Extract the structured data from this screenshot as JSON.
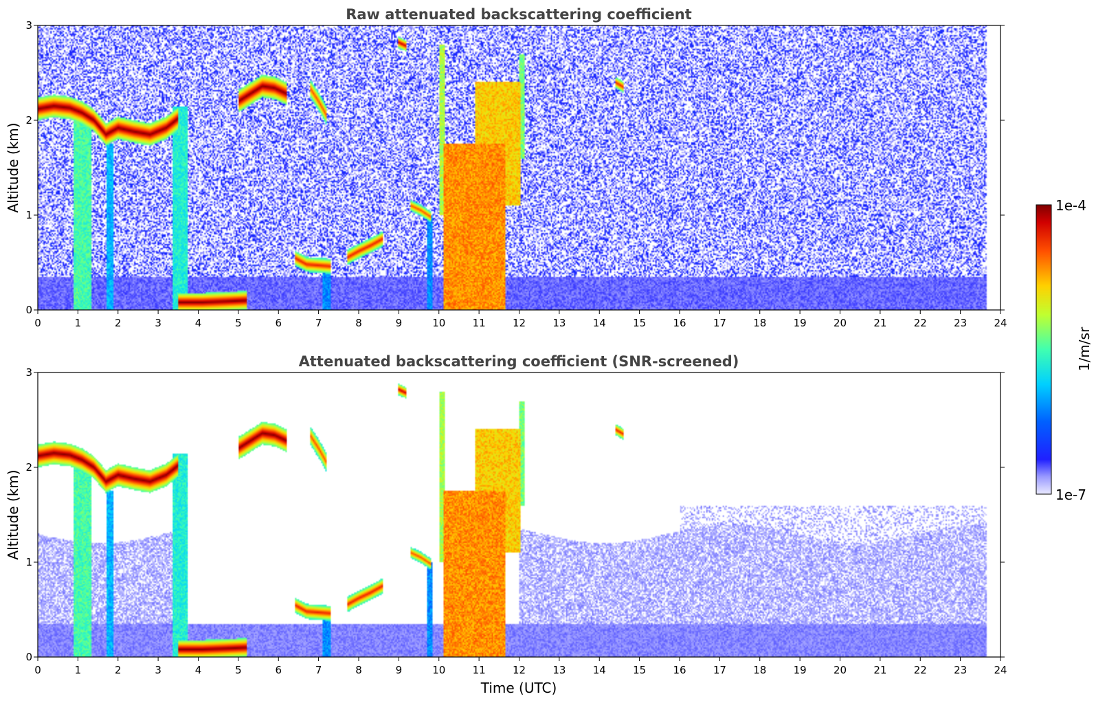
{
  "chart_data": [
    {
      "type": "heatmap",
      "title": "Raw attenuated backscattering coefficient",
      "xlabel": "",
      "ylabel": "Altitude (km)",
      "xlim": [
        0,
        24
      ],
      "ylim": [
        0,
        3
      ],
      "x_ticks": [
        "0",
        "1",
        "2",
        "3",
        "4",
        "5",
        "6",
        "7",
        "8",
        "9",
        "10",
        "11",
        "12",
        "13",
        "14",
        "15",
        "16",
        "17",
        "18",
        "19",
        "20",
        "21",
        "22",
        "23",
        "24"
      ],
      "y_ticks": [
        "0",
        "1",
        "2",
        "3"
      ],
      "data_end_time": 23.65,
      "colorscale": "jet",
      "background_signal": "noisy",
      "features": [
        {
          "kind": "layer",
          "x": [
            0,
            0.4,
            0.8,
            1.1,
            1.4,
            1.7,
            2.0,
            2.4,
            2.8,
            3.2,
            3.5
          ],
          "y": [
            2.12,
            2.15,
            2.13,
            2.08,
            2.0,
            1.85,
            1.92,
            1.88,
            1.85,
            1.92,
            2.02
          ],
          "thickness": 0.12,
          "intensity": 1.0
        },
        {
          "kind": "layer",
          "x": [
            5.0,
            5.3,
            5.6,
            5.9,
            6.2
          ],
          "y": [
            2.2,
            2.28,
            2.36,
            2.34,
            2.28
          ],
          "thickness": 0.12,
          "intensity": 1.0
        },
        {
          "kind": "layer",
          "x": [
            6.8,
            7.0,
            7.2
          ],
          "y": [
            2.33,
            2.2,
            2.05
          ],
          "thickness": 0.1,
          "intensity": 0.85
        },
        {
          "kind": "layer",
          "x": [
            3.5,
            4.1,
            4.7,
            5.2
          ],
          "y": [
            0.08,
            0.08,
            0.09,
            0.1
          ],
          "thickness": 0.1,
          "intensity": 1.0
        },
        {
          "kind": "layer",
          "x": [
            6.4,
            6.7,
            7.0,
            7.3
          ],
          "y": [
            0.55,
            0.48,
            0.47,
            0.46
          ],
          "thickness": 0.08,
          "intensity": 0.9
        },
        {
          "kind": "layer",
          "x": [
            7.7,
            8.0,
            8.3,
            8.6
          ],
          "y": [
            0.55,
            0.62,
            0.68,
            0.75
          ],
          "thickness": 0.08,
          "intensity": 0.9
        },
        {
          "kind": "layer",
          "x": [
            9.0,
            9.2
          ],
          "y": [
            2.82,
            2.78
          ],
          "thickness": 0.06,
          "intensity": 0.95
        },
        {
          "kind": "layer",
          "x": [
            14.4,
            14.6
          ],
          "y": [
            2.4,
            2.35
          ],
          "thickness": 0.06,
          "intensity": 0.9
        },
        {
          "kind": "layer",
          "x": [
            9.3,
            9.55,
            9.8
          ],
          "y": [
            1.1,
            1.05,
            0.98
          ],
          "thickness": 0.06,
          "intensity": 0.85
        },
        {
          "kind": "column",
          "x0": 0.9,
          "x1": 1.35,
          "y0": 0,
          "y1": 2.05,
          "intensity": 0.5
        },
        {
          "kind": "column",
          "x0": 1.7,
          "x1": 1.9,
          "y0": 0,
          "y1": 1.75,
          "intensity": 0.35
        },
        {
          "kind": "column",
          "x0": 3.35,
          "x1": 3.75,
          "y0": 0,
          "y1": 2.15,
          "intensity": 0.45
        },
        {
          "kind": "column",
          "x0": 7.1,
          "x1": 7.3,
          "y0": 0,
          "y1": 0.45,
          "intensity": 0.3
        },
        {
          "kind": "column",
          "x0": 9.7,
          "x1": 9.85,
          "y0": 0,
          "y1": 1.0,
          "intensity": 0.3
        },
        {
          "kind": "column",
          "x0": 10.1,
          "x1": 11.65,
          "y0": 0,
          "y1": 1.75,
          "intensity": 0.78
        },
        {
          "kind": "column",
          "x0": 10.9,
          "x1": 12.05,
          "y0": 1.1,
          "y1": 2.4,
          "intensity": 0.72
        },
        {
          "kind": "column",
          "x0": 10.0,
          "x1": 10.15,
          "y0": 1.0,
          "y1": 2.8,
          "intensity": 0.6
        },
        {
          "kind": "column",
          "x0": 12.0,
          "x1": 12.15,
          "y0": 1.6,
          "y1": 2.7,
          "intensity": 0.55
        }
      ]
    },
    {
      "type": "heatmap",
      "title": "Attenuated backscattering coefficient (SNR-screened)",
      "xlabel": "Time (UTC)",
      "ylabel": "Altitude (km)",
      "xlim": [
        0,
        24
      ],
      "ylim": [
        0,
        3
      ],
      "x_ticks": [
        "0",
        "1",
        "2",
        "3",
        "4",
        "5",
        "6",
        "7",
        "8",
        "9",
        "10",
        "11",
        "12",
        "13",
        "14",
        "15",
        "16",
        "17",
        "18",
        "19",
        "20",
        "21",
        "22",
        "23",
        "24"
      ],
      "y_ticks": [
        "0",
        "1",
        "2",
        "3"
      ],
      "data_end_time": 23.65,
      "colorscale": "jet",
      "background_signal": "screened",
      "features": [
        {
          "kind": "layer",
          "x": [
            0,
            0.4,
            0.8,
            1.1,
            1.4,
            1.7,
            2.0,
            2.4,
            2.8,
            3.2,
            3.5
          ],
          "y": [
            2.12,
            2.15,
            2.13,
            2.08,
            2.0,
            1.85,
            1.92,
            1.88,
            1.85,
            1.92,
            2.02
          ],
          "thickness": 0.12,
          "intensity": 1.0
        },
        {
          "kind": "layer",
          "x": [
            5.0,
            5.3,
            5.6,
            5.9,
            6.2
          ],
          "y": [
            2.2,
            2.28,
            2.36,
            2.34,
            2.28
          ],
          "thickness": 0.12,
          "intensity": 1.0
        },
        {
          "kind": "layer",
          "x": [
            6.8,
            7.0,
            7.2
          ],
          "y": [
            2.33,
            2.2,
            2.05
          ],
          "thickness": 0.1,
          "intensity": 0.85
        },
        {
          "kind": "layer",
          "x": [
            3.5,
            4.1,
            4.7,
            5.2
          ],
          "y": [
            0.08,
            0.08,
            0.09,
            0.1
          ],
          "thickness": 0.1,
          "intensity": 1.0
        },
        {
          "kind": "layer",
          "x": [
            6.4,
            6.7,
            7.0,
            7.3
          ],
          "y": [
            0.55,
            0.48,
            0.47,
            0.46
          ],
          "thickness": 0.08,
          "intensity": 0.9
        },
        {
          "kind": "layer",
          "x": [
            7.7,
            8.0,
            8.3,
            8.6
          ],
          "y": [
            0.55,
            0.62,
            0.68,
            0.75
          ],
          "thickness": 0.08,
          "intensity": 0.9
        },
        {
          "kind": "layer",
          "x": [
            9.0,
            9.2
          ],
          "y": [
            2.82,
            2.78
          ],
          "thickness": 0.06,
          "intensity": 0.95
        },
        {
          "kind": "layer",
          "x": [
            14.4,
            14.6
          ],
          "y": [
            2.4,
            2.35
          ],
          "thickness": 0.06,
          "intensity": 0.9
        },
        {
          "kind": "layer",
          "x": [
            9.3,
            9.55,
            9.8
          ],
          "y": [
            1.1,
            1.05,
            0.98
          ],
          "thickness": 0.06,
          "intensity": 0.85
        },
        {
          "kind": "column",
          "x0": 0.9,
          "x1": 1.35,
          "y0": 0,
          "y1": 2.05,
          "intensity": 0.5
        },
        {
          "kind": "column",
          "x0": 1.7,
          "x1": 1.9,
          "y0": 0,
          "y1": 1.75,
          "intensity": 0.35
        },
        {
          "kind": "column",
          "x0": 3.35,
          "x1": 3.75,
          "y0": 0,
          "y1": 2.15,
          "intensity": 0.45
        },
        {
          "kind": "column",
          "x0": 7.1,
          "x1": 7.3,
          "y0": 0,
          "y1": 0.45,
          "intensity": 0.3
        },
        {
          "kind": "column",
          "x0": 9.7,
          "x1": 9.85,
          "y0": 0,
          "y1": 1.0,
          "intensity": 0.3
        },
        {
          "kind": "column",
          "x0": 10.1,
          "x1": 11.65,
          "y0": 0,
          "y1": 1.75,
          "intensity": 0.78
        },
        {
          "kind": "column",
          "x0": 10.9,
          "x1": 12.05,
          "y0": 1.1,
          "y1": 2.4,
          "intensity": 0.72
        },
        {
          "kind": "column",
          "x0": 10.0,
          "x1": 10.15,
          "y0": 1.0,
          "y1": 2.8,
          "intensity": 0.6
        },
        {
          "kind": "column",
          "x0": 12.0,
          "x1": 12.15,
          "y0": 1.6,
          "y1": 2.7,
          "intensity": 0.55
        }
      ]
    }
  ],
  "colorbar": {
    "label": "1/m/sr",
    "max_label": "1e-4",
    "min_label": "1e-7",
    "scale": "log",
    "colorscale": "jet"
  }
}
